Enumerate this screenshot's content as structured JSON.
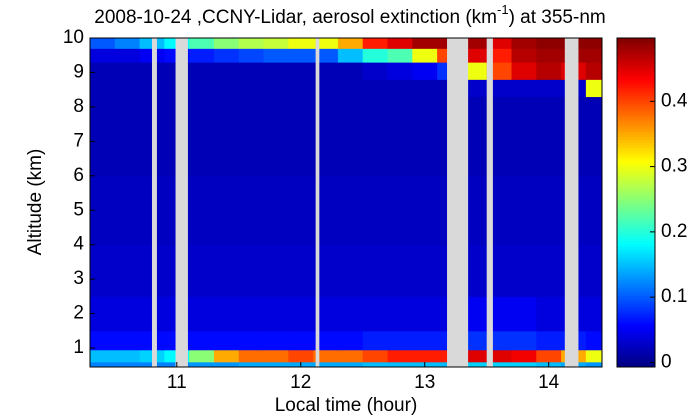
{
  "chart_data": {
    "type": "heatmap",
    "title": "2008-10-24 ,CCNY-Lidar, aerosol extinction (km",
    "title_sup": "-1",
    "title_end": ") at 355-nm",
    "x_label": "Local time (hour)",
    "y_label": "Altitude (km)",
    "xlim": [
      10.3,
      14.43
    ],
    "ylim": [
      0.45,
      10
    ],
    "xticks": [
      11,
      12,
      13,
      14
    ],
    "yticks": [
      1,
      2,
      3,
      4,
      5,
      6,
      7,
      8,
      9,
      10
    ],
    "clim": [
      -0.007,
      0.497
    ],
    "cticks": [
      0,
      0.1,
      0.2,
      0.3,
      0.4
    ],
    "x_edges": [
      10.3,
      10.5,
      10.7,
      10.9,
      11.1,
      11.3,
      11.5,
      11.7,
      11.9,
      12.1,
      12.3,
      12.5,
      12.7,
      12.9,
      13.1,
      13.3,
      13.5,
      13.7,
      13.9,
      14.1,
      14.3,
      14.43
    ],
    "y_edges": [
      0.45,
      0.6,
      0.95,
      1.5,
      2.5,
      4,
      6,
      8.3,
      8.8,
      9.3,
      9.7,
      10
    ],
    "z": [
      [
        0.12,
        0.12,
        0.12,
        0.12,
        0.13,
        0.13,
        0.14,
        0.14,
        0.14,
        0.14,
        0.14,
        0.15,
        0.15,
        0.15,
        0.15,
        0.16,
        0.16,
        0.16,
        0.15,
        0.14,
        0.13
      ],
      [
        0.15,
        0.15,
        0.16,
        0.18,
        0.25,
        0.35,
        0.38,
        0.38,
        0.4,
        0.38,
        0.38,
        0.4,
        0.42,
        0.42,
        0.42,
        0.45,
        0.45,
        0.44,
        0.4,
        0.35,
        0.3
      ],
      [
        0.06,
        0.06,
        0.06,
        0.06,
        0.06,
        0.06,
        0.06,
        0.06,
        0.06,
        0.06,
        0.06,
        0.07,
        0.07,
        0.07,
        0.07,
        0.08,
        0.08,
        0.08,
        0.07,
        0.07,
        0.06
      ],
      [
        0.04,
        0.04,
        0.04,
        0.04,
        0.04,
        0.04,
        0.04,
        0.04,
        0.04,
        0.04,
        0.04,
        0.04,
        0.04,
        0.04,
        0.04,
        0.05,
        0.05,
        0.05,
        0.04,
        0.04,
        0.04
      ],
      [
        0.03,
        0.03,
        0.03,
        0.03,
        0.03,
        0.03,
        0.03,
        0.03,
        0.03,
        0.03,
        0.03,
        0.03,
        0.03,
        0.03,
        0.03,
        0.03,
        0.03,
        0.03,
        0.03,
        0.03,
        0.03
      ],
      [
        0.025,
        0.025,
        0.025,
        0.025,
        0.025,
        0.025,
        0.025,
        0.025,
        0.025,
        0.025,
        0.025,
        0.025,
        0.025,
        0.025,
        0.025,
        0.025,
        0.025,
        0.025,
        0.025,
        0.025,
        0.025
      ],
      [
        0.02,
        0.02,
        0.02,
        0.02,
        0.02,
        0.02,
        0.02,
        0.02,
        0.02,
        0.02,
        0.02,
        0.02,
        0.02,
        0.02,
        0.02,
        0.02,
        0.02,
        0.02,
        0.02,
        0.02,
        0.02
      ],
      [
        0.02,
        0.02,
        0.02,
        0.02,
        0.02,
        0.02,
        0.02,
        0.02,
        0.02,
        0.02,
        0.02,
        0.02,
        0.02,
        0.02,
        0.02,
        0.03,
        0.03,
        0.03,
        0.03,
        0.03,
        0.3
      ],
      [
        0.02,
        0.02,
        0.02,
        0.02,
        0.02,
        0.02,
        0.02,
        0.02,
        0.02,
        0.02,
        0.02,
        0.03,
        0.04,
        0.05,
        0.08,
        0.3,
        0.4,
        0.45,
        0.47,
        0.45,
        0.47
      ],
      [
        0.04,
        0.04,
        0.05,
        0.06,
        0.07,
        0.08,
        0.09,
        0.1,
        0.1,
        0.1,
        0.15,
        0.2,
        0.22,
        0.3,
        0.4,
        0.45,
        0.42,
        0.47,
        0.48,
        0.48,
        0.48
      ],
      [
        0.1,
        0.12,
        0.15,
        0.18,
        0.22,
        0.25,
        0.27,
        0.28,
        0.3,
        0.3,
        0.35,
        0.42,
        0.45,
        0.48,
        0.48,
        0.48,
        0.45,
        0.48,
        0.49,
        0.49,
        0.49
      ]
    ],
    "gaps": [
      [
        10.8,
        10.84
      ],
      [
        10.99,
        11.09
      ],
      [
        12.12,
        12.15
      ],
      [
        13.18,
        13.35
      ],
      [
        13.5,
        13.55
      ],
      [
        14.13,
        14.24
      ]
    ],
    "gap_color": "#d9d9d9"
  }
}
